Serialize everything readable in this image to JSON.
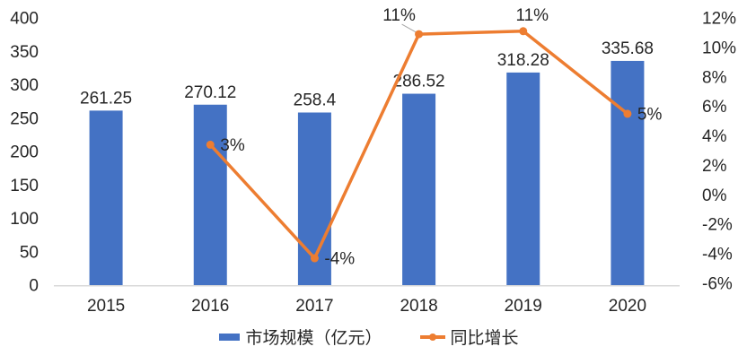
{
  "chart_data": {
    "type": "bar",
    "subtype": "combo-bar-line",
    "categories": [
      "2015",
      "2016",
      "2017",
      "2018",
      "2019",
      "2020"
    ],
    "series": [
      {
        "name": "市场规模（亿元）",
        "type": "bar",
        "axis": "left",
        "color": "#4472C4",
        "values": [
          261.25,
          270.12,
          258.4,
          286.52,
          318.28,
          335.68
        ],
        "data_labels": [
          "261.25",
          "270.12",
          "258.4",
          "286.52",
          "318.28",
          "335.68"
        ]
      },
      {
        "name": "同比增长",
        "type": "line",
        "axis": "right",
        "color": "#ED7D31",
        "start_category_index": 1,
        "values": [
          3.4,
          -4.3,
          10.9,
          11.1,
          5.5
        ],
        "data_labels": [
          "3%",
          "-4%",
          "11%",
          "11%",
          "5%"
        ],
        "label_placement": [
          "right",
          "right",
          "above-leader",
          "above",
          "right"
        ]
      }
    ],
    "left_axis": {
      "min": 0,
      "max": 400,
      "step": 50,
      "ticks": [
        "400",
        "350",
        "300",
        "250",
        "200",
        "150",
        "100",
        "50",
        "0"
      ]
    },
    "right_axis": {
      "min": -6,
      "max": 12,
      "step": 2,
      "ticks": [
        "12%",
        "10%",
        "8%",
        "6%",
        "4%",
        "2%",
        "0%",
        "-2%",
        "-4%",
        "-6%"
      ]
    },
    "grid": false,
    "legend_position": "bottom"
  },
  "colors": {
    "bar": "#4472C4",
    "line": "#ED7D31",
    "axis_line": "#D9D9D9",
    "leader_line": "#A6A6A6",
    "text": "#262626",
    "background": "#FFFFFF"
  }
}
